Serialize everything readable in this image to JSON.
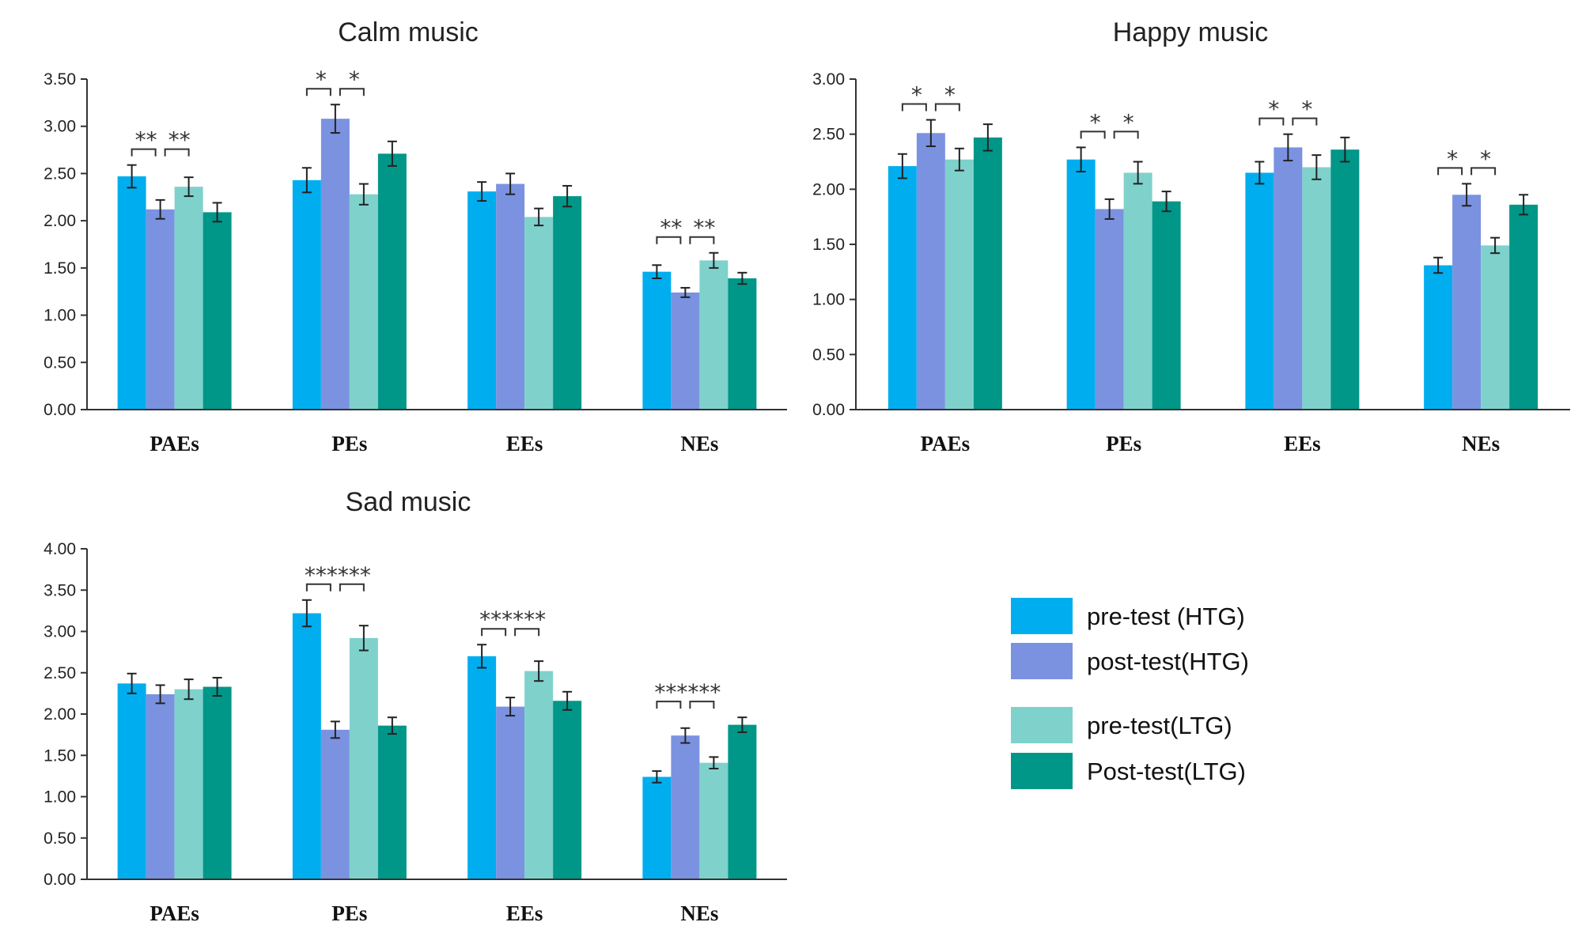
{
  "legend": {
    "items": [
      {
        "label": "pre-test (HTG)",
        "color": "#00AEEF"
      },
      {
        "label": "post-test(HTG)",
        "color": "#7B92E0"
      },
      {
        "label": "pre-test(LTG)",
        "color": "#7FD1CC"
      },
      {
        "label": "Post-test(LTG)",
        "color": "#009688"
      }
    ]
  },
  "chart_data": [
    {
      "type": "bar",
      "title": "Calm music",
      "categories": [
        "PAEs",
        "PEs",
        "EEs",
        "NEs"
      ],
      "ylim": [
        0,
        3.5
      ],
      "yticks": [
        "0.00",
        "0.50",
        "1.00",
        "1.50",
        "2.00",
        "2.50",
        "3.00",
        "3.50"
      ],
      "series": [
        {
          "name": "pre-test (HTG)",
          "values": [
            2.47,
            2.43,
            2.31,
            1.46
          ],
          "errors": [
            0.12,
            0.13,
            0.1,
            0.07
          ]
        },
        {
          "name": "post-test(HTG)",
          "values": [
            2.12,
            3.08,
            2.39,
            1.24
          ],
          "errors": [
            0.1,
            0.15,
            0.11,
            0.05
          ]
        },
        {
          "name": "pre-test(LTG)",
          "values": [
            2.36,
            2.28,
            2.04,
            1.58
          ],
          "errors": [
            0.1,
            0.11,
            0.09,
            0.08
          ]
        },
        {
          "name": "Post-test(LTG)",
          "values": [
            2.09,
            2.71,
            2.26,
            1.39
          ],
          "errors": [
            0.1,
            0.13,
            0.11,
            0.06
          ]
        }
      ],
      "significance": [
        {
          "category": 0,
          "marks": [
            "**",
            "**"
          ]
        },
        {
          "category": 1,
          "marks": [
            "*",
            "*"
          ]
        },
        {
          "category": 3,
          "marks": [
            "**",
            "**"
          ]
        }
      ]
    },
    {
      "type": "bar",
      "title": "Happy music",
      "categories": [
        "PAEs",
        "PEs",
        "EEs",
        "NEs"
      ],
      "ylim": [
        0,
        3.0
      ],
      "yticks": [
        "0.00",
        "0.50",
        "1.00",
        "1.50",
        "2.00",
        "2.50",
        "3.00"
      ],
      "series": [
        {
          "name": "pre-test (HTG)",
          "values": [
            2.21,
            2.27,
            2.15,
            1.31
          ],
          "errors": [
            0.11,
            0.11,
            0.1,
            0.07
          ]
        },
        {
          "name": "post-test(HTG)",
          "values": [
            2.51,
            1.82,
            2.38,
            1.95
          ],
          "errors": [
            0.12,
            0.09,
            0.12,
            0.1
          ]
        },
        {
          "name": "pre-test(LTG)",
          "values": [
            2.27,
            2.15,
            2.2,
            1.49
          ],
          "errors": [
            0.1,
            0.1,
            0.11,
            0.07
          ]
        },
        {
          "name": "Post-test(LTG)",
          "values": [
            2.47,
            1.89,
            2.36,
            1.86
          ],
          "errors": [
            0.12,
            0.09,
            0.11,
            0.09
          ]
        }
      ],
      "significance": [
        {
          "category": 0,
          "marks": [
            "*",
            "*"
          ]
        },
        {
          "category": 1,
          "marks": [
            "*",
            "*"
          ]
        },
        {
          "category": 2,
          "marks": [
            "*",
            "*"
          ]
        },
        {
          "category": 3,
          "marks": [
            "*",
            "*"
          ]
        }
      ]
    },
    {
      "type": "bar",
      "title": "Sad music",
      "categories": [
        "PAEs",
        "PEs",
        "EEs",
        "NEs"
      ],
      "ylim": [
        0,
        4.0
      ],
      "yticks": [
        "0.00",
        "0.50",
        "1.00",
        "1.50",
        "2.00",
        "2.50",
        "3.00",
        "3.50",
        "4.00"
      ],
      "series": [
        {
          "name": "pre-test (HTG)",
          "values": [
            2.37,
            3.22,
            2.7,
            1.24
          ],
          "errors": [
            0.12,
            0.16,
            0.14,
            0.07
          ]
        },
        {
          "name": "post-test(HTG)",
          "values": [
            2.24,
            1.81,
            2.09,
            1.74
          ],
          "errors": [
            0.11,
            0.1,
            0.11,
            0.09
          ]
        },
        {
          "name": "pre-test(LTG)",
          "values": [
            2.3,
            2.92,
            2.52,
            1.41
          ],
          "errors": [
            0.12,
            0.15,
            0.12,
            0.07
          ]
        },
        {
          "name": "Post-test(LTG)",
          "values": [
            2.33,
            1.86,
            2.16,
            1.87
          ],
          "errors": [
            0.11,
            0.1,
            0.11,
            0.09
          ]
        }
      ],
      "significance": [
        {
          "category": 1,
          "marks": [
            "***",
            "***"
          ]
        },
        {
          "category": 2,
          "marks": [
            "***",
            "***"
          ]
        },
        {
          "category": 3,
          "marks": [
            "***",
            "***"
          ]
        }
      ]
    }
  ]
}
